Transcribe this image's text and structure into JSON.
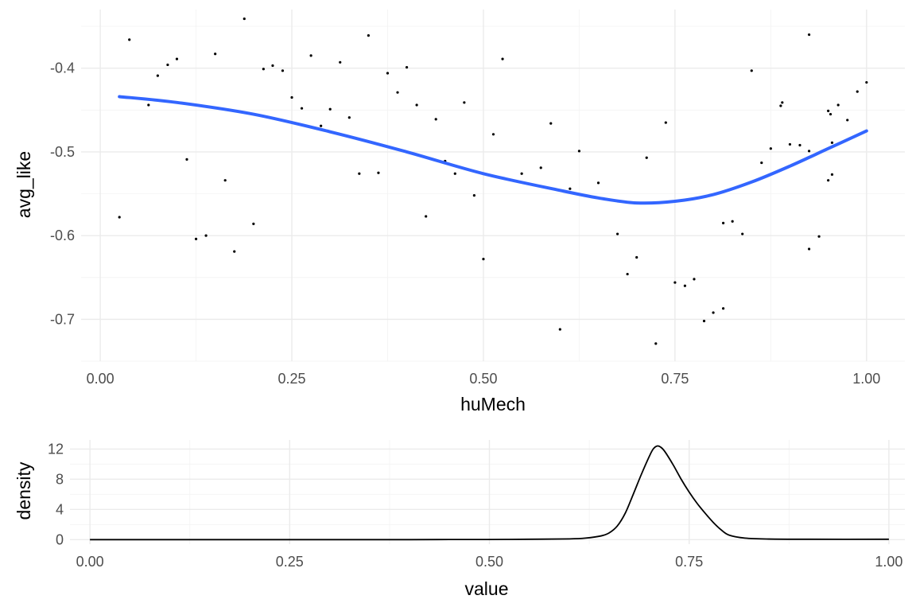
{
  "chart_data": [
    {
      "type": "scatter",
      "xlabel": "huMech",
      "ylabel": "avg_like",
      "xlim": [
        -0.025,
        1.05
      ],
      "ylim": [
        -0.75,
        -0.33
      ],
      "x_ticks": [
        0,
        0.25,
        0.5,
        0.75,
        1
      ],
      "x_tick_labels": [
        "0.00",
        "0.25",
        "0.50",
        "0.75",
        "1.00"
      ],
      "y_ticks": [
        -0.7,
        -0.6,
        -0.5,
        -0.4
      ],
      "y_tick_labels": [
        "-0.7",
        "-0.6",
        "-0.5",
        "-0.4"
      ],
      "grid": true,
      "point_color": "#000000",
      "points": [
        [
          0.025,
          -0.578
        ],
        [
          0.038,
          -0.366
        ],
        [
          0.063,
          -0.444
        ],
        [
          0.075,
          -0.409
        ],
        [
          0.088,
          -0.396
        ],
        [
          0.1,
          -0.389
        ],
        [
          0.113,
          -0.509
        ],
        [
          0.125,
          -0.604
        ],
        [
          0.138,
          -0.6
        ],
        [
          0.15,
          -0.383
        ],
        [
          0.163,
          -0.534
        ],
        [
          0.175,
          -0.619
        ],
        [
          0.188,
          -0.341
        ],
        [
          0.2,
          -0.586
        ],
        [
          0.213,
          -0.401
        ],
        [
          0.225,
          -0.397
        ],
        [
          0.238,
          -0.403
        ],
        [
          0.25,
          -0.435
        ],
        [
          0.263,
          -0.448
        ],
        [
          0.275,
          -0.385
        ],
        [
          0.288,
          -0.469
        ],
        [
          0.3,
          -0.449
        ],
        [
          0.313,
          -0.393
        ],
        [
          0.325,
          -0.459
        ],
        [
          0.338,
          -0.526
        ],
        [
          0.35,
          -0.361
        ],
        [
          0.363,
          -0.525
        ],
        [
          0.375,
          -0.406
        ],
        [
          0.388,
          -0.429
        ],
        [
          0.4,
          -0.399
        ],
        [
          0.413,
          -0.444
        ],
        [
          0.425,
          -0.577
        ],
        [
          0.438,
          -0.461
        ],
        [
          0.45,
          -0.511
        ],
        [
          0.463,
          -0.526
        ],
        [
          0.475,
          -0.441
        ],
        [
          0.488,
          -0.552
        ],
        [
          0.5,
          -0.628
        ],
        [
          0.513,
          -0.479
        ],
        [
          0.525,
          -0.389
        ],
        [
          0.55,
          -0.526
        ],
        [
          0.575,
          -0.519
        ],
        [
          0.588,
          -0.466
        ],
        [
          0.6,
          -0.712
        ],
        [
          0.613,
          -0.544
        ],
        [
          0.625,
          -0.499
        ],
        [
          0.65,
          -0.537
        ],
        [
          0.675,
          -0.598
        ],
        [
          0.688,
          -0.646
        ],
        [
          0.7,
          -0.626
        ],
        [
          0.713,
          -0.507
        ],
        [
          0.725,
          -0.729
        ],
        [
          0.738,
          -0.465
        ],
        [
          0.75,
          -0.656
        ],
        [
          0.763,
          -0.66
        ],
        [
          0.775,
          -0.652
        ],
        [
          0.788,
          -0.702
        ],
        [
          0.8,
          -0.692
        ],
        [
          0.813,
          -0.585
        ],
        [
          0.813,
          -0.687
        ],
        [
          0.825,
          -0.583
        ],
        [
          0.838,
          -0.598
        ],
        [
          0.85,
          -0.403
        ],
        [
          0.863,
          -0.513
        ],
        [
          0.875,
          -0.496
        ],
        [
          0.888,
          -0.445
        ],
        [
          0.89,
          -0.441
        ],
        [
          0.9,
          -0.491
        ],
        [
          0.913,
          -0.492
        ],
        [
          0.925,
          -0.499
        ],
        [
          0.925,
          -0.36
        ],
        [
          0.925,
          -0.616
        ],
        [
          0.938,
          -0.601
        ],
        [
          0.95,
          -0.534
        ],
        [
          0.95,
          -0.451
        ],
        [
          0.953,
          -0.455
        ],
        [
          0.955,
          -0.527
        ],
        [
          0.955,
          -0.489
        ],
        [
          0.963,
          -0.444
        ],
        [
          0.975,
          -0.462
        ],
        [
          0.988,
          -0.428
        ],
        [
          1.0,
          -0.417
        ]
      ],
      "smooth": {
        "name": "loess fit",
        "color": "#3366FF",
        "x": [
          0.025,
          0.1,
          0.2,
          0.3,
          0.4,
          0.5,
          0.6,
          0.65,
          0.7,
          0.75,
          0.8,
          0.85,
          0.9,
          0.95,
          1.0
        ],
        "y": [
          -0.434,
          -0.441,
          -0.455,
          -0.476,
          -0.5,
          -0.526,
          -0.546,
          -0.555,
          -0.561,
          -0.559,
          -0.551,
          -0.536,
          -0.517,
          -0.496,
          -0.475
        ]
      }
    },
    {
      "type": "line",
      "xlabel": "value",
      "ylabel": "density",
      "xlim": [
        -0.025,
        1.02
      ],
      "ylim": [
        -0.6,
        13.2
      ],
      "x_ticks": [
        0,
        0.25,
        0.5,
        0.75,
        1
      ],
      "x_tick_labels": [
        "0.00",
        "0.25",
        "0.50",
        "0.75",
        "1.00"
      ],
      "y_ticks": [
        0,
        4,
        8,
        12
      ],
      "y_tick_labels": [
        "0",
        "4",
        "8",
        "12"
      ],
      "grid": true,
      "line_color": "#000000",
      "x": [
        0,
        0.1,
        0.2,
        0.3,
        0.4,
        0.45,
        0.5,
        0.55,
        0.6,
        0.62,
        0.64,
        0.65,
        0.66,
        0.67,
        0.68,
        0.69,
        0.7,
        0.705,
        0.71,
        0.715,
        0.72,
        0.73,
        0.74,
        0.75,
        0.76,
        0.77,
        0.78,
        0.79,
        0.8,
        0.82,
        0.85,
        0.9,
        1.0
      ],
      "y": [
        0,
        0,
        0,
        0,
        0,
        0.02,
        0.02,
        0.05,
        0.1,
        0.2,
        0.5,
        0.9,
        1.8,
        3.5,
        6.0,
        8.6,
        11.0,
        12.0,
        12.4,
        12.2,
        11.6,
        9.9,
        8.0,
        6.3,
        4.8,
        3.5,
        2.3,
        1.3,
        0.6,
        0.2,
        0.08,
        0.05,
        0.05
      ]
    }
  ]
}
